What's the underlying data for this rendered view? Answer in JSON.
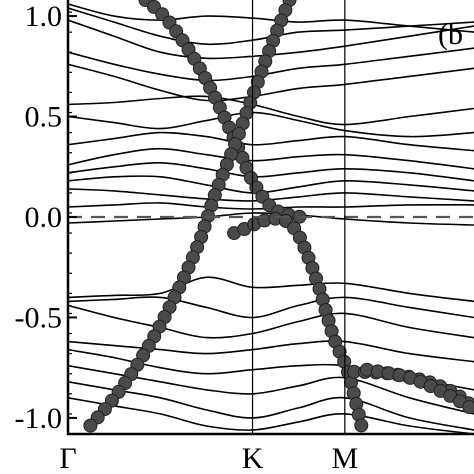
{
  "chart_data": {
    "type": "line",
    "title": "",
    "xlabel": "",
    "ylabel": "",
    "panel_label": "(b",
    "ylim": [
      -1.08,
      1.08
    ],
    "x_ticks": [
      "Γ",
      "K",
      "M"
    ],
    "x_tick_positions": [
      0,
      1,
      1.5
    ],
    "xlim": [
      0,
      2.2
    ],
    "y_ticks": [
      -1.0,
      -0.5,
      0.0,
      0.5,
      1.0
    ],
    "y_tick_labels": [
      "-1.0",
      "-0.5",
      "0.0",
      "0.5",
      "1.0"
    ],
    "fermi_level": 0.0,
    "fermi_line_style": "dashed",
    "grid": false,
    "colors": {
      "bands": "#000000",
      "highlight": "#4a4a4a",
      "fermi": "#555555"
    },
    "series": [
      {
        "x": [
          0,
          0.25,
          0.5,
          0.75,
          1.0,
          1.25,
          1.5,
          1.85,
          2.2
        ],
        "values": [
          1.06,
          1.0,
          0.98,
          1.0,
          0.99,
          0.97,
          0.98,
          0.95,
          0.92
        ]
      },
      {
        "x": [
          0,
          0.25,
          0.5,
          0.75,
          1.0,
          1.25,
          1.5,
          1.85,
          2.2
        ],
        "values": [
          1.04,
          0.97,
          0.9,
          0.86,
          0.88,
          0.92,
          0.93,
          0.95,
          0.97
        ]
      },
      {
        "x": [
          0,
          0.25,
          0.5,
          0.75,
          1.0,
          1.25,
          1.5,
          1.85,
          2.2
        ],
        "values": [
          0.98,
          0.9,
          0.82,
          0.79,
          0.8,
          0.82,
          0.85,
          0.9,
          0.95
        ]
      },
      {
        "x": [
          0,
          0.25,
          0.5,
          0.75,
          1.0,
          1.25,
          1.5,
          1.85,
          2.2
        ],
        "values": [
          0.82,
          0.76,
          0.71,
          0.68,
          0.7,
          0.74,
          0.76,
          0.8,
          0.84
        ]
      },
      {
        "x": [
          0,
          0.25,
          0.5,
          0.75,
          1.0,
          1.25,
          1.5,
          1.85,
          2.2
        ],
        "values": [
          0.76,
          0.7,
          0.63,
          0.58,
          0.6,
          0.64,
          0.66,
          0.7,
          0.74
        ]
      },
      {
        "x": [
          0,
          0.25,
          0.5,
          0.75,
          1.0,
          1.25,
          1.5,
          1.85,
          2.2
        ],
        "values": [
          0.56,
          0.57,
          0.59,
          0.6,
          0.56,
          0.5,
          0.46,
          0.5,
          0.54
        ]
      },
      {
        "x": [
          0,
          0.25,
          0.5,
          0.75,
          1.0,
          1.25,
          1.5,
          1.85,
          2.2
        ],
        "values": [
          0.5,
          0.47,
          0.44,
          0.48,
          0.52,
          0.48,
          0.43,
          0.4,
          0.42
        ]
      },
      {
        "x": [
          0,
          0.25,
          0.5,
          0.75,
          1.0,
          1.25,
          1.5,
          1.85,
          2.2
        ],
        "values": [
          0.36,
          0.39,
          0.42,
          0.4,
          0.36,
          0.38,
          0.4,
          0.36,
          0.33
        ]
      },
      {
        "x": [
          0,
          0.25,
          0.5,
          0.75,
          1.0,
          1.25,
          1.5,
          1.85,
          2.2
        ],
        "values": [
          0.26,
          0.31,
          0.34,
          0.31,
          0.28,
          0.3,
          0.31,
          0.28,
          0.24
        ]
      },
      {
        "x": [
          0,
          0.25,
          0.5,
          0.75,
          1.0,
          1.25,
          1.5,
          1.85,
          2.2
        ],
        "values": [
          0.22,
          0.25,
          0.27,
          0.24,
          0.2,
          0.22,
          0.24,
          0.22,
          0.18
        ]
      },
      {
        "x": [
          0,
          0.25,
          0.5,
          0.75,
          1.0,
          1.25,
          1.5,
          1.85,
          2.2
        ],
        "values": [
          0.18,
          0.2,
          0.2,
          0.16,
          0.12,
          0.15,
          0.18,
          0.16,
          0.13
        ]
      },
      {
        "x": [
          0,
          0.25,
          0.5,
          0.75,
          1.0,
          1.25,
          1.5,
          1.85,
          2.2
        ],
        "values": [
          0.14,
          0.13,
          0.11,
          0.09,
          0.08,
          0.1,
          0.12,
          0.1,
          0.08
        ]
      },
      {
        "x": [
          0,
          0.25,
          0.5,
          0.75,
          1.0,
          1.25,
          1.5,
          1.85,
          2.2
        ],
        "values": [
          0.05,
          0.06,
          0.07,
          0.05,
          0.04,
          0.05,
          0.05,
          0.06,
          0.06
        ]
      },
      {
        "x": [
          0,
          0.25,
          0.5,
          0.75,
          1.0,
          1.25,
          1.5,
          1.85,
          2.2
        ],
        "values": [
          -0.03,
          -0.02,
          -0.01,
          0.0,
          0.02,
          0.01,
          -0.01,
          -0.03,
          -0.04
        ]
      },
      {
        "x": [
          0,
          0.25,
          0.5,
          0.75,
          1.0,
          1.25,
          1.5,
          1.85,
          2.2
        ],
        "values": [
          -0.4,
          -0.39,
          -0.38,
          -0.3,
          -0.35,
          -0.34,
          -0.33,
          -0.38,
          -0.42
        ]
      },
      {
        "x": [
          0,
          0.25,
          0.5,
          0.75,
          1.0,
          1.25,
          1.5,
          1.85,
          2.2
        ],
        "values": [
          -0.42,
          -0.41,
          -0.4,
          -0.45,
          -0.5,
          -0.44,
          -0.4,
          -0.45,
          -0.5
        ]
      },
      {
        "x": [
          0,
          0.25,
          0.5,
          0.75,
          1.0,
          1.25,
          1.5,
          1.85,
          2.2
        ],
        "values": [
          -0.44,
          -0.5,
          -0.55,
          -0.6,
          -0.58,
          -0.52,
          -0.48,
          -0.55,
          -0.6
        ]
      },
      {
        "x": [
          0,
          0.25,
          0.5,
          0.75,
          1.0,
          1.25,
          1.5,
          1.85,
          2.2
        ],
        "values": [
          -0.62,
          -0.64,
          -0.66,
          -0.68,
          -0.66,
          -0.63,
          -0.62,
          -0.68,
          -0.72
        ]
      },
      {
        "x": [
          0,
          0.25,
          0.5,
          0.75,
          1.0,
          1.25,
          1.5,
          1.85,
          2.2
        ],
        "values": [
          -0.66,
          -0.7,
          -0.75,
          -0.78,
          -0.76,
          -0.74,
          -0.74,
          -0.8,
          -0.86
        ]
      },
      {
        "x": [
          0,
          0.25,
          0.5,
          0.75,
          1.0,
          1.25,
          1.5,
          1.85,
          2.2
        ],
        "values": [
          -0.74,
          -0.78,
          -0.82,
          -0.86,
          -0.88,
          -0.84,
          -0.8,
          -0.9,
          -0.98
        ]
      },
      {
        "x": [
          0,
          0.25,
          0.5,
          0.75,
          1.0,
          1.25,
          1.5,
          1.85,
          2.2
        ],
        "values": [
          -0.82,
          -0.86,
          -0.9,
          -0.96,
          -1.0,
          -0.95,
          -0.9,
          -1.0,
          -1.06
        ]
      },
      {
        "x": [
          0,
          0.25,
          0.5,
          0.75,
          1.0,
          1.25,
          1.5,
          1.85,
          2.2
        ],
        "values": [
          -0.9,
          -0.94,
          -0.98,
          -1.04,
          -1.06,
          -1.02,
          -0.98,
          -1.04,
          -1.08
        ]
      }
    ],
    "highlight_series": [
      {
        "x": [
          0.42,
          0.52,
          0.62,
          0.72,
          0.82,
          0.92,
          1.0,
          1.1,
          1.2,
          1.27
        ],
        "values": [
          1.08,
          1.0,
          0.88,
          0.73,
          0.55,
          0.35,
          0.18,
          0.05,
          0.01,
          0.0
        ]
      },
      {
        "x": [
          1.2,
          1.1,
          1.0,
          0.9,
          0.8,
          0.7,
          0.55,
          0.4,
          0.25,
          0.1
        ],
        "values": [
          1.08,
          0.85,
          0.6,
          0.35,
          0.12,
          -0.15,
          -0.45,
          -0.7,
          -0.9,
          -1.06
        ]
      },
      {
        "x": [
          0.9,
          0.98,
          1.05,
          1.15,
          1.22,
          1.28,
          1.36,
          1.44,
          1.52,
          1.6
        ],
        "values": [
          -0.08,
          -0.05,
          -0.02,
          -0.01,
          -0.05,
          -0.15,
          -0.35,
          -0.6,
          -0.78,
          -1.08
        ]
      },
      {
        "x": [
          1.55,
          1.75,
          1.95,
          2.1,
          2.2
        ],
        "values": [
          -0.77,
          -0.78,
          -0.82,
          -0.88,
          -0.95
        ]
      },
      {
        "x": [
          1.62,
          1.85,
          2.05,
          2.2
        ],
        "values": [
          -0.76,
          -0.8,
          -0.88,
          -0.96
        ]
      }
    ]
  }
}
